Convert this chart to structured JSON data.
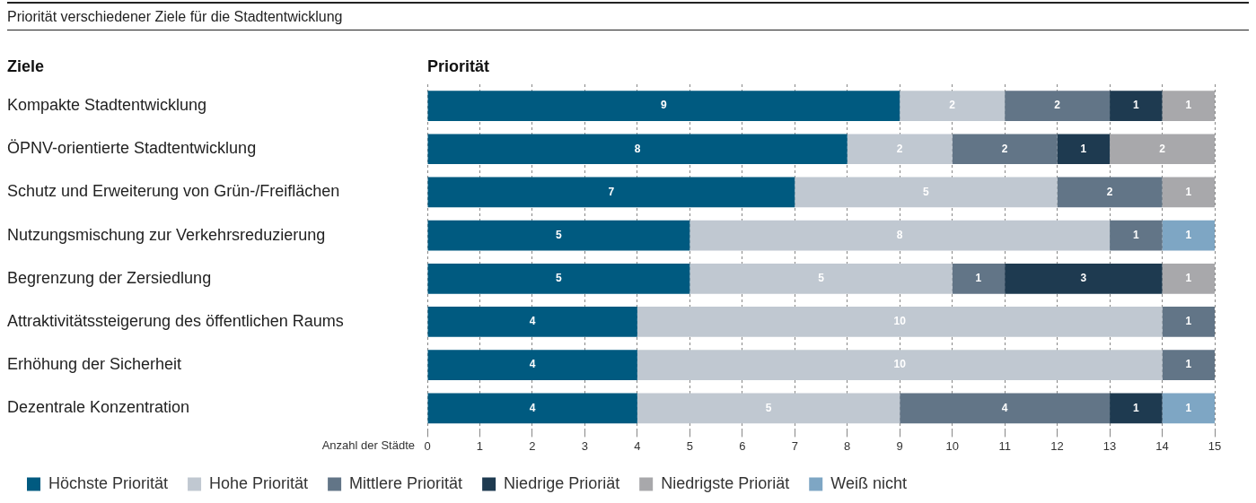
{
  "chart_data": {
    "type": "bar",
    "orientation": "horizontal",
    "stacked": true,
    "title": "Priorität verschiedener Ziele für die Stadtentwicklung",
    "ylabel": "Ziele",
    "xlabel": "Anzahl der Städte",
    "annotations": [
      "Priorität"
    ],
    "categories": [
      "Kompakte Stadtentwicklung",
      "ÖPNV-orientierte Stadtentwicklung",
      "Schutz und Erweiterung von Grün-/Freiflächen",
      "Nutzungsmischung zur Verkehrsreduzierung",
      "Begrenzung der Zersiedlung",
      "Attraktivitätssteigerung des öffentlichen Raums",
      "Erhöhung der Sicherheit",
      "Dezentrale Konzentration"
    ],
    "series": [
      {
        "name": "Höchste Priorität",
        "color": "#005a80",
        "values": [
          9,
          8,
          7,
          5,
          5,
          4,
          4,
          4
        ]
      },
      {
        "name": "Hohe Priorität",
        "color": "#c0c8d1",
        "values": [
          2,
          2,
          5,
          8,
          5,
          10,
          10,
          5
        ]
      },
      {
        "name": "Mittlere Priorität",
        "color": "#627587",
        "values": [
          2,
          2,
          2,
          1,
          1,
          1,
          1,
          4
        ]
      },
      {
        "name": "Niedrige Prioriät",
        "color": "#1e3a50",
        "values": [
          1,
          1,
          null,
          null,
          3,
          null,
          null,
          1
        ]
      },
      {
        "name": "Niedrigste Prioriät",
        "color": "#a8a8ab",
        "values": [
          1,
          2,
          1,
          null,
          1,
          null,
          null,
          null
        ]
      },
      {
        "name": "Weiß nicht",
        "color": "#7ea6c4",
        "values": [
          null,
          null,
          null,
          1,
          null,
          null,
          null,
          1
        ]
      }
    ],
    "xlim": [
      0,
      15
    ],
    "xticks": [
      0,
      1,
      2,
      3,
      4,
      5,
      6,
      7,
      8,
      9,
      10,
      11,
      12,
      13,
      14,
      15
    ],
    "grid": "x",
    "legend": "bottom",
    "data_labels": true
  }
}
